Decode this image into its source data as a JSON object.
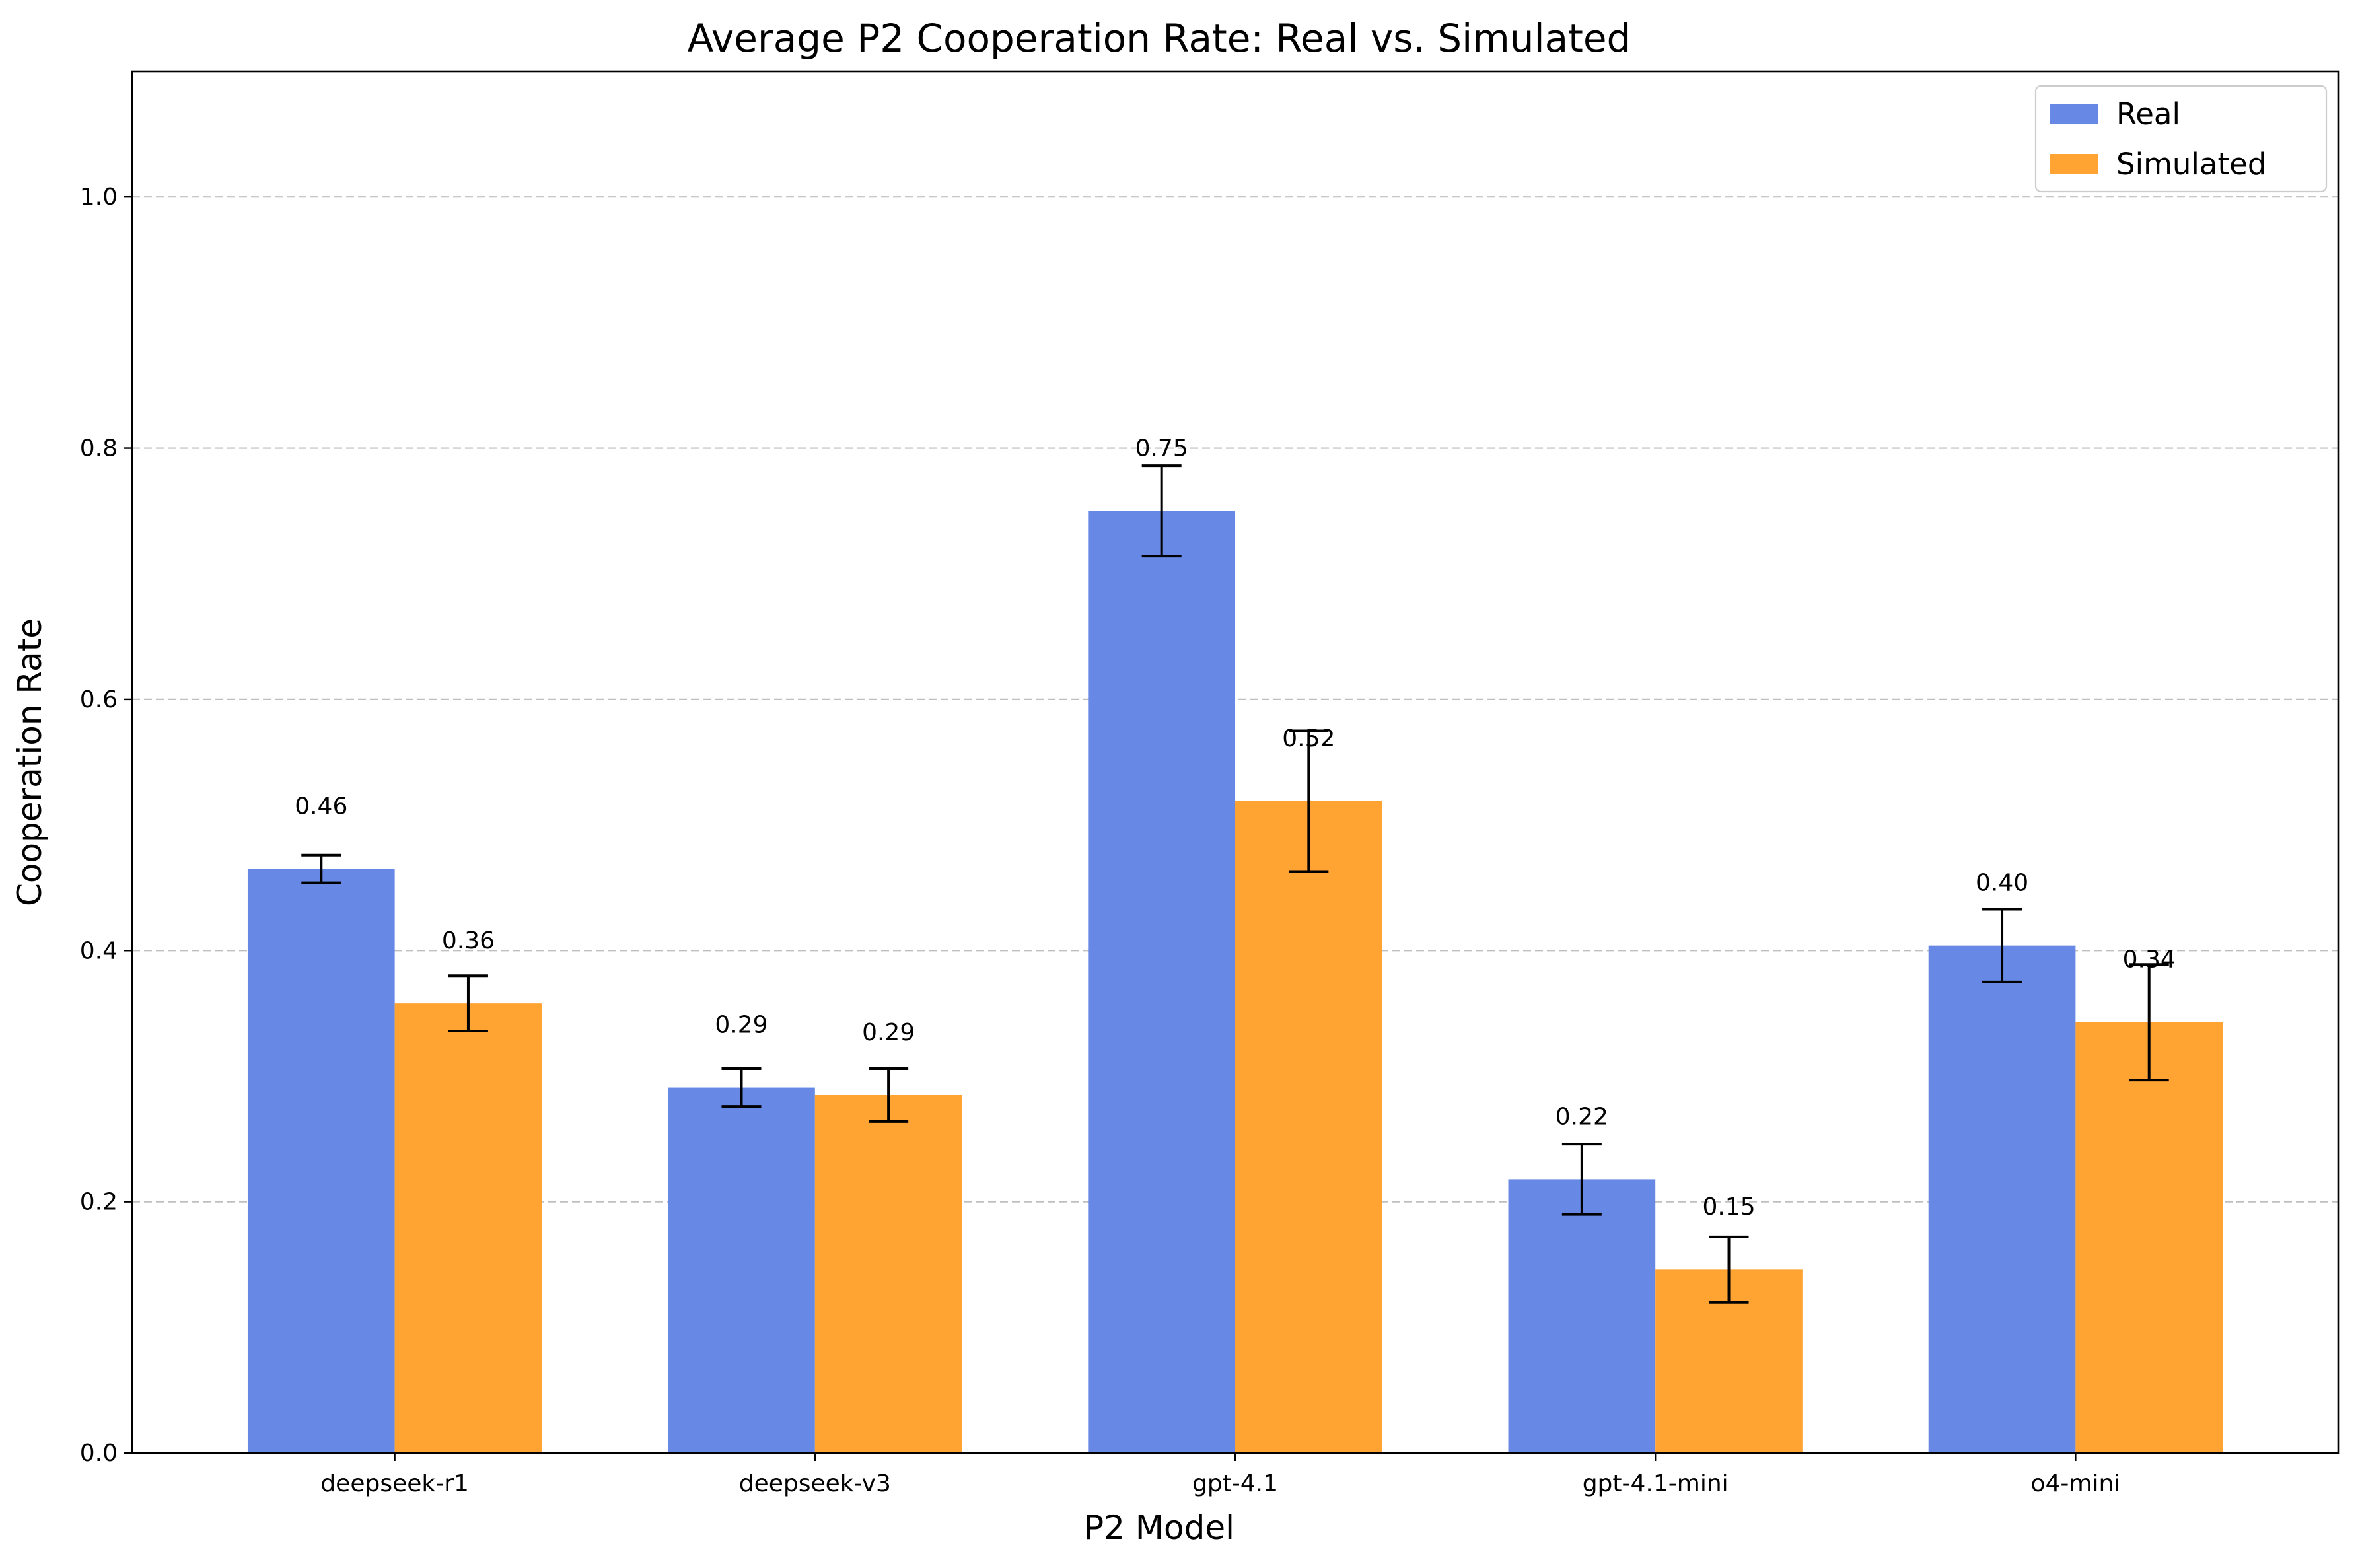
{
  "chart_data": {
    "type": "bar",
    "title": "Average P2 Cooperation Rate: Real vs. Simulated",
    "xlabel": "P2 Model",
    "ylabel": "Cooperation Rate",
    "categories": [
      "deepseek-r1",
      "deepseek-v3",
      "gpt-4.1",
      "gpt-4.1-mini",
      "o4-mini"
    ],
    "ylim": [
      0,
      1.1
    ],
    "yticks": [
      0.0,
      0.2,
      0.4,
      0.6,
      0.8,
      1.0
    ],
    "ytick_labels": [
      "0.0",
      "0.2",
      "0.4",
      "0.6",
      "0.8",
      "1.0"
    ],
    "grid": "y-dashed",
    "legend_position": "top-right",
    "series": [
      {
        "name": "Real",
        "color": "#6788e5",
        "values": [
          0.465,
          0.291,
          0.75,
          0.218,
          0.404
        ],
        "errors": [
          0.011,
          0.015,
          0.036,
          0.028,
          0.029
        ],
        "value_labels": [
          "0.46",
          "0.29",
          "0.75",
          "0.22",
          "0.40"
        ]
      },
      {
        "name": "Simulated",
        "color": "#ffa333",
        "values": [
          0.358,
          0.285,
          0.519,
          0.146,
          0.343
        ],
        "errors": [
          0.022,
          0.021,
          0.056,
          0.026,
          0.046
        ],
        "value_labels": [
          "0.36",
          "0.29",
          "0.52",
          "0.15",
          "0.34"
        ]
      }
    ]
  }
}
